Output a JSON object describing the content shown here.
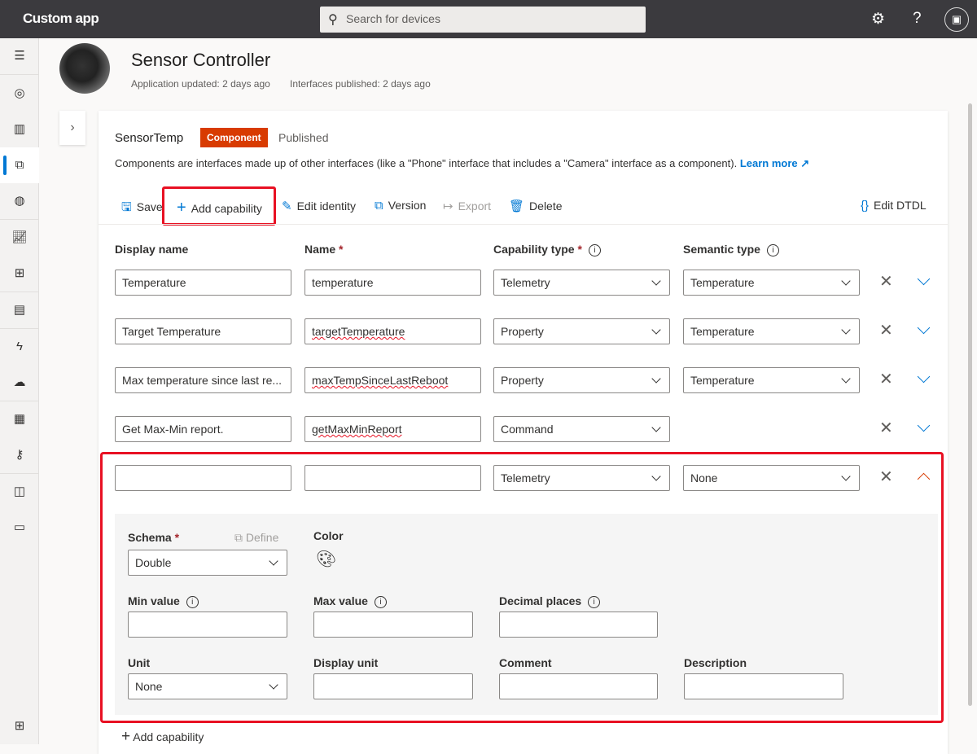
{
  "topbar": {
    "app_title": "Custom app",
    "search_placeholder": "Search for devices",
    "icons": [
      "settings-gear-icon",
      "help-icon",
      "account-badge-icon"
    ]
  },
  "sidebar": {
    "items": [
      "menu-icon",
      "dashboard-icon",
      "devices-icon",
      "device-groups-icon",
      "analytics-icon",
      "jobs-icon",
      "device-templates-icon",
      "rules-icon",
      "data-export-icon",
      "audit-icon",
      "permissions-icon",
      "app-settings-icon",
      "customization-icon",
      "resource-icon"
    ],
    "active_index": 3
  },
  "header": {
    "title": "Sensor Controller",
    "app_updated": "Application updated: 2 days ago",
    "interfaces_published": "Interfaces published: 2 days ago"
  },
  "interface": {
    "name": "SensorTemp",
    "badge": "Component",
    "status": "Published",
    "description": "Components are interfaces made up of other interfaces (like a \"Phone\" interface that includes a \"Camera\" interface as a component).",
    "learn_more": "Learn more"
  },
  "toolbar": {
    "save": "Save",
    "add_capability": "Add capability",
    "edit_identity": "Edit identity",
    "version": "Version",
    "export": "Export",
    "delete": "Delete",
    "edit_dtdl": "Edit DTDL"
  },
  "columns": {
    "display_name": "Display name",
    "name": "Name",
    "capability_type": "Capability type",
    "semantic_type": "Semantic type",
    "required_mark": "*"
  },
  "rows": [
    {
      "display_name": "Temperature",
      "name": "temperature",
      "capability_type": "Telemetry",
      "semantic_type": "Temperature"
    },
    {
      "display_name": "Target Temperature",
      "name": "targetTemperature",
      "capability_type": "Property",
      "semantic_type": "Temperature"
    },
    {
      "display_name": "Max temperature since last re...",
      "name": "maxTempSinceLastReboot",
      "capability_type": "Property",
      "semantic_type": "Temperature"
    },
    {
      "display_name": "Get Max-Min report.",
      "name": "getMaxMinReport",
      "capability_type": "Command",
      "semantic_type": ""
    },
    {
      "display_name": "",
      "name": "",
      "capability_type": "Telemetry",
      "semantic_type": "None"
    }
  ],
  "detail": {
    "schema_label": "Schema",
    "schema_value": "Double",
    "define": "Define",
    "color_label": "Color",
    "min_value": "Min value",
    "max_value": "Max value",
    "decimal_places": "Decimal places",
    "unit_label": "Unit",
    "unit_value": "None",
    "display_unit": "Display unit",
    "comment": "Comment",
    "description": "Description"
  },
  "footer": {
    "add_capability": "Add capability"
  },
  "colors": {
    "accent": "#0078d4",
    "badge": "#d83b01",
    "highlight": "#e81123",
    "topbar": "#3b3a3e"
  }
}
